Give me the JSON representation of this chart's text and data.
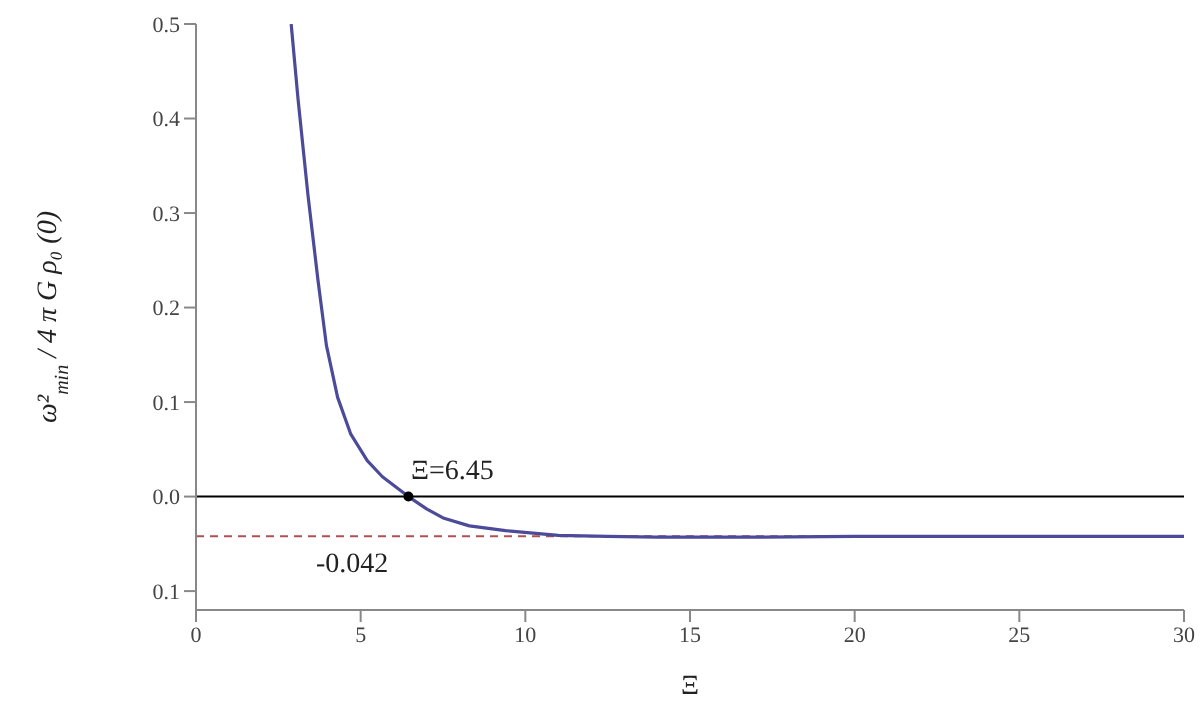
{
  "chart_data": {
    "type": "line",
    "xlabel": "Ξ",
    "ylabel": "ω²$_{min}$ / 4 π G ρ₀ (0)",
    "x": [
      2.89,
      3.1,
      3.4,
      3.7,
      3.96,
      4.3,
      4.7,
      5.2,
      5.66,
      6.45,
      7.0,
      7.53,
      8.3,
      9.4,
      11,
      12.5,
      14,
      17,
      20,
      25,
      30
    ],
    "series": [
      {
        "color": "#4b4b9a",
        "values": [
          0.5,
          0.42,
          0.319,
          0.23,
          0.16,
          0.105,
          0.066,
          0.038,
          0.021,
          0,
          -0.013,
          -0.023,
          -0.031,
          -0.036,
          -0.041,
          -0.042,
          -0.043,
          -0.043,
          -0.042,
          -0.042,
          -0.042
        ]
      }
    ],
    "xlim": [
      0,
      30
    ],
    "xticks": [
      0,
      5,
      10,
      15,
      20,
      25,
      30
    ],
    "ylim": [
      -0.12,
      0.5
    ],
    "yticks": [
      {
        "value": -0.1,
        "label": "0.1"
      },
      {
        "value": 0,
        "label": "0.0"
      },
      0.1,
      0.2,
      0.3,
      0.4,
      0.5
    ],
    "ref_lines": [
      {
        "axis": "y",
        "value": 0,
        "color": "#000000",
        "line_style": "solid"
      },
      {
        "axis": "y",
        "value": -0.042,
        "label": "-0.042",
        "color": "#b05050",
        "line_style": "dashed"
      }
    ],
    "annotations": [
      {
        "text": "Ξ=6.45",
        "x": 6.45,
        "y": 0
      }
    ],
    "grid": false,
    "legend": false,
    "marker": "none",
    "line_style": "solid"
  }
}
